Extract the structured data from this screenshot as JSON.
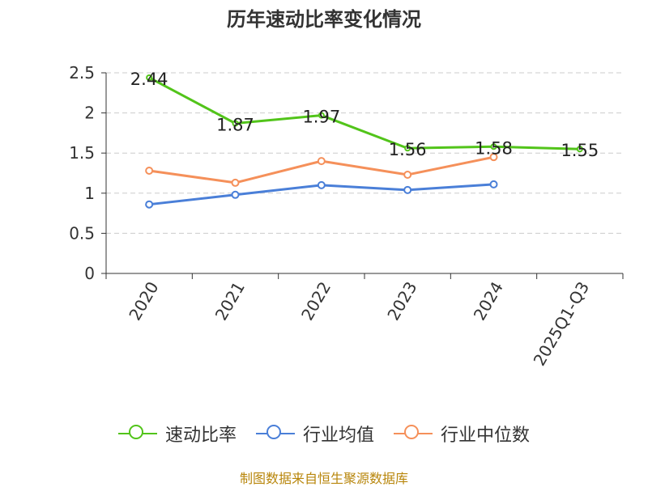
{
  "chart_data": {
    "type": "line",
    "title": "历年速动比率变化情况",
    "categories": [
      "2020",
      "2021",
      "2022",
      "2023",
      "2024",
      "2025Q1-Q3"
    ],
    "series": [
      {
        "name": "速动比率",
        "color": "#52c41a",
        "values": [
          2.44,
          1.87,
          1.97,
          1.56,
          1.58,
          1.55
        ],
        "labels": [
          "2.44",
          "1.87",
          "1.97",
          "1.56",
          "1.58",
          "1.55"
        ]
      },
      {
        "name": "行业均值",
        "color": "#4a7fd8",
        "values": [
          0.86,
          0.98,
          1.1,
          1.04,
          1.11,
          null
        ]
      },
      {
        "name": "行业中位数",
        "color": "#f5905a",
        "values": [
          1.28,
          1.13,
          1.4,
          1.23,
          1.45,
          null
        ]
      }
    ],
    "y_ticks": [
      "0",
      "0.5",
      "1",
      "1.5",
      "2",
      "2.5"
    ],
    "ylim": [
      0,
      2.5
    ],
    "grid": true,
    "legend_position": "bottom"
  },
  "footer": {
    "source": "制图数据来自恒生聚源数据库"
  }
}
